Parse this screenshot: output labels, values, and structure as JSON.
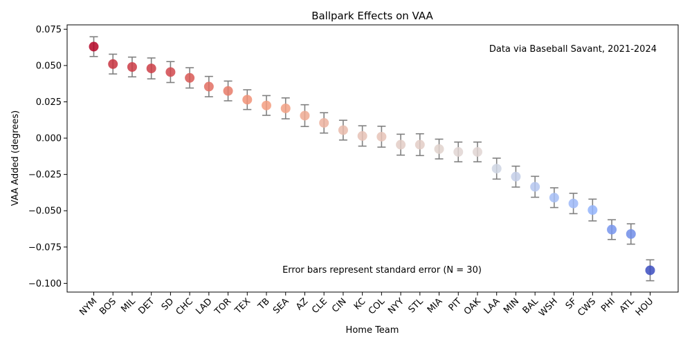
{
  "chart_data": {
    "type": "scatter",
    "title": "Ballpark Effects on VAA",
    "xlabel": "Home Team",
    "ylabel": "VAA Added (degrees)",
    "ylim": [
      -0.106,
      0.078
    ],
    "yticks": [
      -0.1,
      -0.075,
      -0.05,
      -0.025,
      0.0,
      0.025,
      0.05,
      0.075
    ],
    "ytick_labels": [
      "−0.100",
      "−0.075",
      "−0.050",
      "−0.025",
      "0.000",
      "0.025",
      "0.050",
      "0.075"
    ],
    "grid": false,
    "categories": [
      "NYM",
      "BOS",
      "MIL",
      "DET",
      "SD",
      "CHC",
      "LAD",
      "TOR",
      "TEX",
      "TB",
      "SEA",
      "AZ",
      "CLE",
      "CIN",
      "KC",
      "COL",
      "NYY",
      "STL",
      "MIA",
      "PIT",
      "OAK",
      "LAA",
      "MIN",
      "BAL",
      "WSH",
      "SF",
      "CWS",
      "PHI",
      "ATL",
      "HOU"
    ],
    "values": [
      0.063,
      0.051,
      0.049,
      0.048,
      0.0455,
      0.0415,
      0.0355,
      0.0325,
      0.0265,
      0.0225,
      0.0205,
      0.0155,
      0.0105,
      0.0055,
      0.0015,
      0.001,
      -0.0045,
      -0.0045,
      -0.0075,
      -0.0095,
      -0.0095,
      -0.021,
      -0.0265,
      -0.0335,
      -0.041,
      -0.045,
      -0.0495,
      -0.063,
      -0.066,
      -0.091
    ],
    "errors": [
      0.0068,
      0.0068,
      0.0068,
      0.0072,
      0.0072,
      0.007,
      0.007,
      0.0068,
      0.0068,
      0.0068,
      0.0072,
      0.0075,
      0.007,
      0.0068,
      0.007,
      0.0072,
      0.0072,
      0.0075,
      0.0068,
      0.0068,
      0.0068,
      0.0072,
      0.0072,
      0.0072,
      0.0068,
      0.007,
      0.0075,
      0.0068,
      0.007,
      0.0072
    ],
    "annotations": [
      {
        "text": "Data via Baseball Savant, 2021-2024",
        "placement": "top-right"
      },
      {
        "text": "Error bars represent standard error (N = 30)",
        "placement": "bottom-center"
      }
    ],
    "colormap": "coolwarm",
    "error_bar_color": "#808080"
  }
}
